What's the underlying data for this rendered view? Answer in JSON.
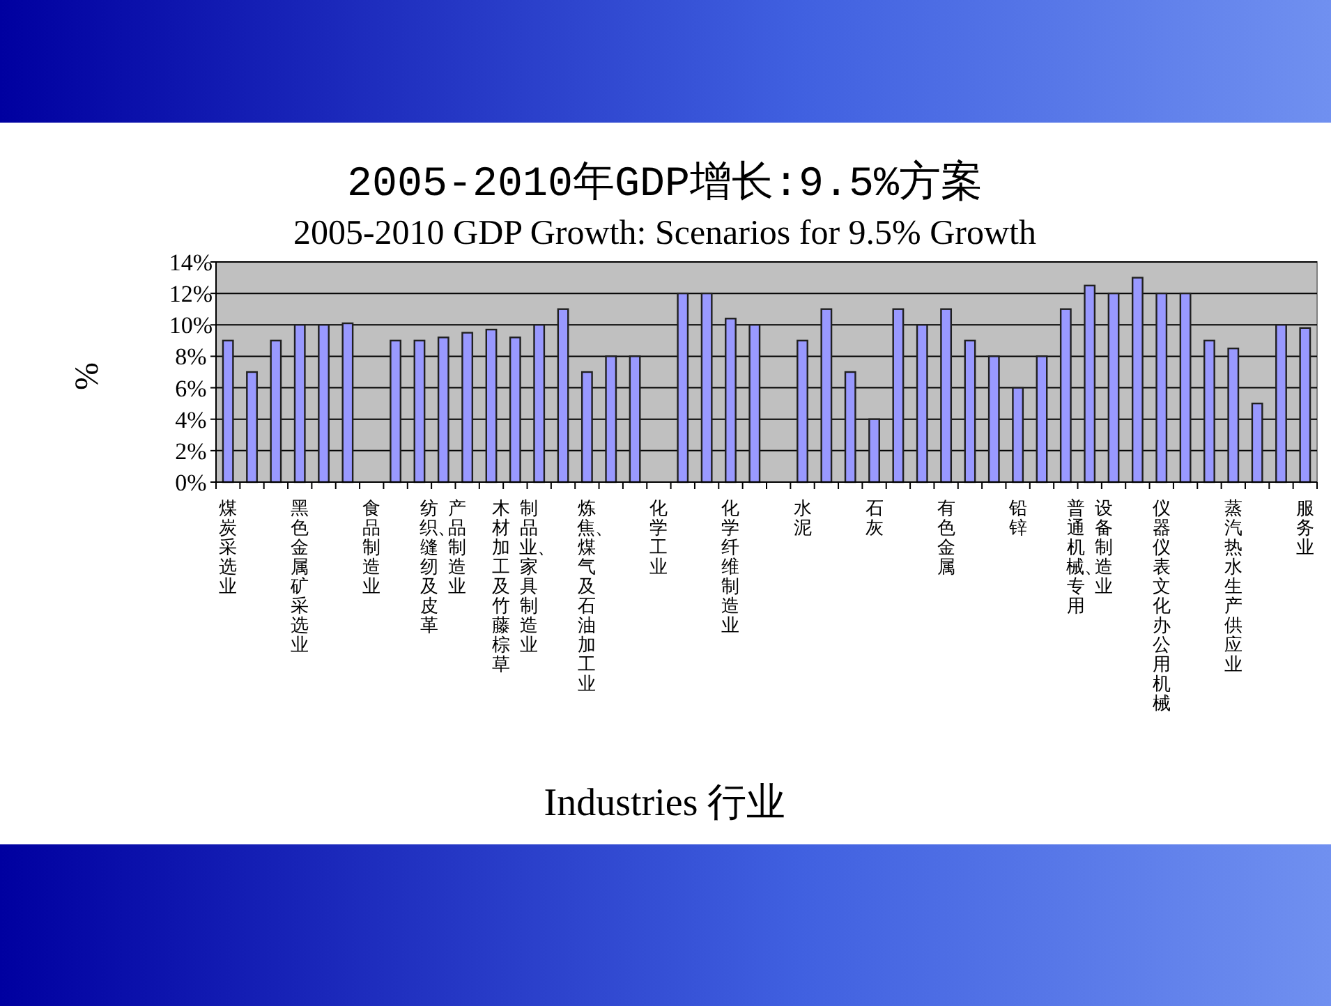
{
  "chart_data": {
    "type": "bar",
    "title": "2005-2010年GDP增长:9.5%方案",
    "subtitle": "2005-2010 GDP Growth: Scenarios for 9.5% Growth",
    "xlabel": "Industries 行业",
    "ylabel": "%",
    "categories": [
      "煤炭采选业",
      null,
      null,
      "黑色金属矿采选业",
      null,
      null,
      "食品制造业",
      null,
      null,
      "纺织、缝纫及皮革产品制造业",
      null,
      null,
      "木材加工及竹藤棕草制品业、家具制造业",
      null,
      null,
      "炼焦、煤气及石油加工业",
      null,
      null,
      "化学工业",
      null,
      null,
      "化学纤维制造业",
      null,
      null,
      "水泥",
      null,
      null,
      "石灰",
      null,
      null,
      "有色金属",
      null,
      null,
      "铅锌",
      null,
      null,
      "普通机械、专用设备制造业",
      null,
      null,
      "仪器仪表文化办公用机械",
      null,
      null,
      "蒸汽热水生产供应业",
      null,
      null,
      "服务业"
    ],
    "values": [
      9,
      7,
      9,
      10,
      10,
      10.1,
      null,
      9,
      9,
      9.2,
      9.5,
      9.7,
      9.2,
      10,
      11,
      7,
      8,
      8,
      null,
      12,
      12,
      10.4,
      10,
      null,
      9,
      11,
      7,
      4,
      11,
      10,
      11,
      9,
      8,
      6,
      8,
      11,
      12.5,
      12,
      13,
      12,
      12,
      9,
      8.5,
      5,
      10,
      9.8
    ],
    "color": "#9999ff",
    "ylim": [
      0,
      14
    ],
    "yticks": [
      {
        "value": 0,
        "label": "0%"
      },
      {
        "value": 2,
        "label": "2%"
      },
      {
        "value": 4,
        "label": "4%"
      },
      {
        "value": 6,
        "label": "6%"
      },
      {
        "value": 8,
        "label": "8%"
      },
      {
        "value": 10,
        "label": "10%"
      },
      {
        "value": 12,
        "label": "12%"
      },
      {
        "value": 14,
        "label": "14%"
      }
    ],
    "grid": "y"
  }
}
